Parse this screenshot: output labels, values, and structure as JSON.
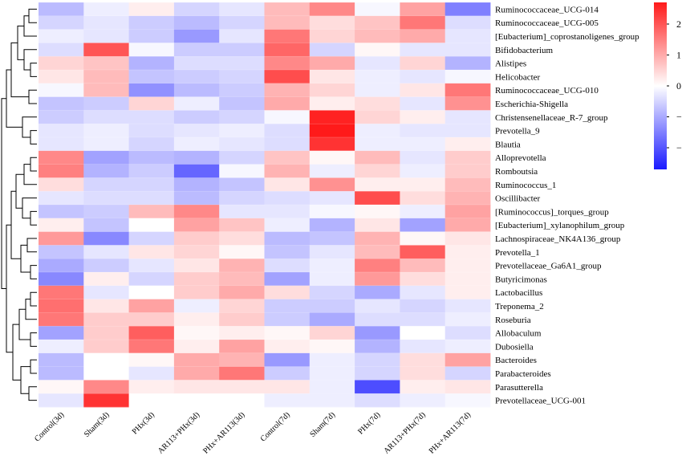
{
  "chart_data": {
    "type": "heatmap",
    "columns": [
      "Control(3d)",
      "Sham(3d)",
      "PHx(3d)",
      "AR113+PHx(3d)",
      "PHx+AR113(3d)",
      "Control(7d)",
      "Sham(7d)",
      "PHx(7d)",
      "AR113+PHx(7d)",
      "PHx+AR113(7d)"
    ],
    "rows": [
      "Ruminococcaceae_UCG-014",
      "Ruminococcaceae_UCG-005",
      "[Eubacterium]_coprostanoligenes_group",
      "Bifidobacterium",
      "Alistipes",
      "Helicobacter",
      "Ruminococcaceae_UCG-010",
      "Escherichia-Shigella",
      "Christensenellaceae_R-7_group",
      "Prevotella_9",
      "Blautia",
      "Alloprevotella",
      "Romboutsia",
      "Ruminococcus_1",
      "Oscillibacter",
      "[Ruminococcus]_torques_group",
      "[Eubacterium]_xylanophilum_group",
      "Lachnospiraceae_NK4A136_group",
      "Prevotella_1",
      "Prevotellaceae_Ga6A1_group",
      "Butyricimonas",
      "Lactobacillus",
      "Treponema_2",
      "Roseburia",
      "Allobaculum",
      "Dubosiella",
      "Bacteroides",
      "Parabacteroides",
      "Parasutterella",
      "Prevotellaceae_UCG-001"
    ],
    "values": [
      [
        -0.8,
        -0.2,
        0.2,
        -0.5,
        -0.3,
        0.8,
        1.4,
        -0.1,
        1.1,
        -1.5
      ],
      [
        -0.5,
        -0.3,
        -0.6,
        -0.8,
        -0.5,
        0.8,
        0.4,
        0.7,
        1.6,
        -0.4
      ],
      [
        -0.2,
        -0.3,
        -0.6,
        -1.2,
        -0.3,
        1.6,
        0.5,
        0.8,
        1.0,
        -0.3
      ],
      [
        -0.4,
        2.0,
        -0.1,
        -0.6,
        -0.6,
        1.8,
        -0.5,
        0.1,
        -0.3,
        -0.3
      ],
      [
        0.5,
        0.7,
        -0.9,
        -0.4,
        -0.4,
        1.4,
        1.0,
        -0.3,
        0.5,
        -0.9
      ],
      [
        0.3,
        0.8,
        -0.7,
        -0.6,
        -0.5,
        2.1,
        0.3,
        -0.2,
        -0.3,
        -0.1
      ],
      [
        -0.1,
        0.8,
        -1.3,
        -0.8,
        -0.6,
        0.9,
        0.5,
        -0.2,
        0.3,
        1.6
      ],
      [
        -0.7,
        -0.6,
        0.5,
        -0.2,
        -0.7,
        1.0,
        0.2,
        0.4,
        -0.3,
        1.3
      ],
      [
        -0.6,
        -0.4,
        -0.4,
        -0.6,
        -0.5,
        -0.1,
        2.6,
        0.5,
        0.2,
        -0.3
      ],
      [
        -0.3,
        -0.2,
        -0.4,
        -0.3,
        -0.2,
        -0.4,
        2.9,
        -0.2,
        -0.3,
        -0.3
      ],
      [
        -0.3,
        -0.2,
        -0.5,
        -0.2,
        -0.3,
        -0.4,
        2.4,
        -0.2,
        -0.2,
        0.2
      ],
      [
        1.4,
        -1.1,
        -0.8,
        -0.9,
        -0.5,
        0.7,
        0.1,
        0.8,
        -0.3,
        0.6
      ],
      [
        1.5,
        -0.9,
        -0.6,
        -1.8,
        -0.1,
        0.9,
        -0.2,
        0.5,
        -0.2,
        0.6
      ],
      [
        0.4,
        -0.5,
        -0.5,
        -0.9,
        -0.7,
        0.3,
        1.3,
        0.2,
        0.2,
        0.8
      ],
      [
        -0.3,
        -0.4,
        -0.4,
        -0.8,
        -0.5,
        -0.4,
        -0.3,
        2.1,
        0.4,
        0.9
      ],
      [
        -0.7,
        -0.6,
        0.8,
        1.4,
        -0.3,
        -0.3,
        -0.1,
        0.1,
        -0.2,
        1.1
      ],
      [
        0.2,
        -0.7,
        0.0,
        1.1,
        0.7,
        -0.2,
        -0.9,
        0.3,
        -1.1,
        1.0
      ],
      [
        1.2,
        -1.4,
        -0.5,
        0.6,
        0.4,
        -0.8,
        -0.7,
        0.9,
        0.1,
        0.3
      ],
      [
        -0.7,
        -0.3,
        0.3,
        0.5,
        0.1,
        -0.7,
        -0.3,
        0.8,
        1.9,
        0.2
      ],
      [
        -1.0,
        -0.6,
        -0.3,
        0.3,
        0.9,
        -0.4,
        -0.2,
        1.5,
        0.8,
        0.2
      ],
      [
        -1.4,
        0.2,
        -0.5,
        0.6,
        0.8,
        -1.1,
        -0.2,
        1.2,
        0.4,
        0.2
      ],
      [
        1.6,
        -0.3,
        0.0,
        0.6,
        1.0,
        0.4,
        -0.5,
        -1.0,
        -0.3,
        0.2
      ],
      [
        1.7,
        0.3,
        1.1,
        -0.2,
        0.5,
        -0.6,
        -0.6,
        -0.3,
        -0.5,
        -0.3
      ],
      [
        1.6,
        0.6,
        0.6,
        0.2,
        0.6,
        -0.6,
        -1.0,
        -0.4,
        -0.4,
        -0.2
      ],
      [
        -1.1,
        0.6,
        1.9,
        0.1,
        0.2,
        0.1,
        0.5,
        -1.2,
        0.0,
        -0.4
      ],
      [
        -0.2,
        0.6,
        1.6,
        0.2,
        1.1,
        0.2,
        0.1,
        -0.9,
        -0.3,
        -0.2
      ],
      [
        -0.8,
        0.0,
        0.1,
        1.0,
        0.9,
        -1.2,
        -0.2,
        -0.5,
        0.4,
        1.1
      ],
      [
        -0.8,
        0.0,
        -0.3,
        1.0,
        1.6,
        -0.6,
        -0.2,
        -0.5,
        0.4,
        -0.5
      ],
      [
        0.1,
        1.4,
        0.2,
        0.3,
        0.3,
        0.3,
        -0.2,
        -2.1,
        0.2,
        0.3
      ],
      [
        -0.3,
        2.4,
        0.0,
        0.0,
        0.0,
        -0.2,
        -0.2,
        -0.4,
        -0.2,
        -0.1
      ]
    ],
    "color_scale": {
      "min": -2.7,
      "max": 2.7,
      "low_color": "#1a1aff",
      "mid_color": "#ffffff",
      "high_color": "#ff1a1a",
      "ticks": [
        -2,
        -1,
        0,
        1,
        2
      ]
    },
    "dendrogram": "rows",
    "legend_position": "right"
  }
}
